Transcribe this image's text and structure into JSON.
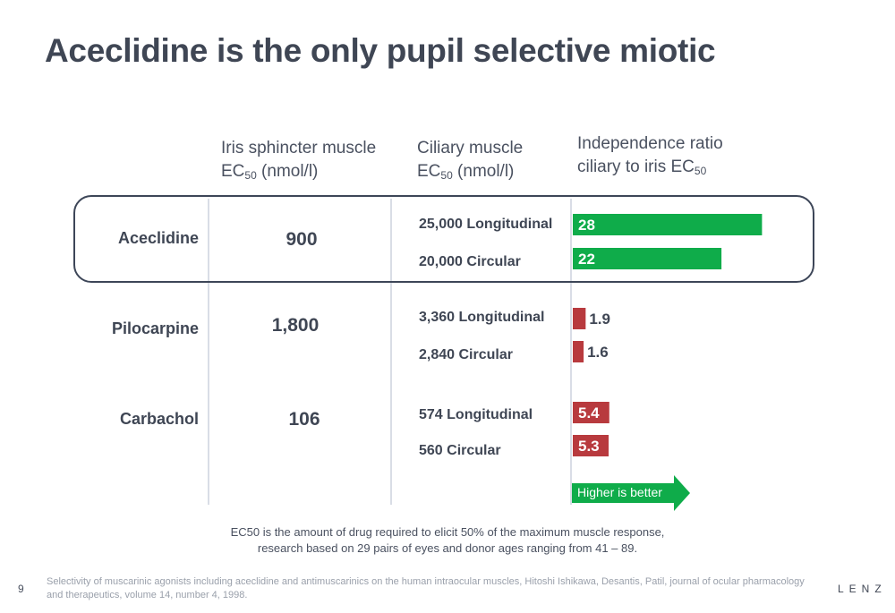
{
  "title": "Aceclidine is the only pupil selective miotic",
  "columns": {
    "iris": {
      "line1": "Iris sphincter muscle",
      "prefix": "EC",
      "sub": "50",
      "suffix": " (nmol/l)"
    },
    "ciliary": {
      "line1": "Ciliary muscle",
      "prefix": "EC",
      "sub": "50",
      "suffix": " (nmol/l)"
    },
    "ratio": {
      "line1": "Independence ratio",
      "prefix": "ciliary to iris EC",
      "sub": "50",
      "suffix": ""
    }
  },
  "arrow_label": "Higher is better",
  "footnote": {
    "line1": "EC50 is the amount of drug required to elicit 50% of the maximum muscle response,",
    "line2": "research based on 29 pairs of eyes and donor ages ranging from 41 – 89."
  },
  "page_number": "9",
  "source": "Selectivity of muscarinic agonists including aceclidine and antimuscarinics on the human intraocular muscles, Hitoshi Ishikawa, Desantis, Patil, journal of ocular pharmacology and therapeutics, volume 14, number 4, 1998.",
  "logo_text": "LENZ",
  "colors": {
    "good": "#0fac4a",
    "bad": "#b83a3e"
  },
  "chart_data": {
    "type": "bar",
    "orientation": "horizontal",
    "title": "",
    "xlabel": "",
    "ylabel": "",
    "xlim": [
      0,
      30
    ],
    "rows": [
      {
        "drug": "Aceclidine",
        "iris_ec50": "900",
        "ciliary": [
          {
            "label": "25,000 Longitudinal",
            "ratio": 28,
            "ratio_label": "28"
          },
          {
            "label": "20,000 Circular",
            "ratio": 22,
            "ratio_label": "22"
          }
        ]
      },
      {
        "drug": "Pilocarpine",
        "iris_ec50": "1,800",
        "ciliary": [
          {
            "label": "3,360 Longitudinal",
            "ratio": 1.9,
            "ratio_label": "1.9"
          },
          {
            "label": "2,840 Circular",
            "ratio": 1.6,
            "ratio_label": "1.6"
          }
        ]
      },
      {
        "drug": "Carbachol",
        "iris_ec50": "106",
        "ciliary": [
          {
            "label": "574 Longitudinal",
            "ratio": 5.4,
            "ratio_label": "5.4"
          },
          {
            "label": "560 Circular",
            "ratio": 5.3,
            "ratio_label": "5.3"
          }
        ]
      }
    ]
  }
}
